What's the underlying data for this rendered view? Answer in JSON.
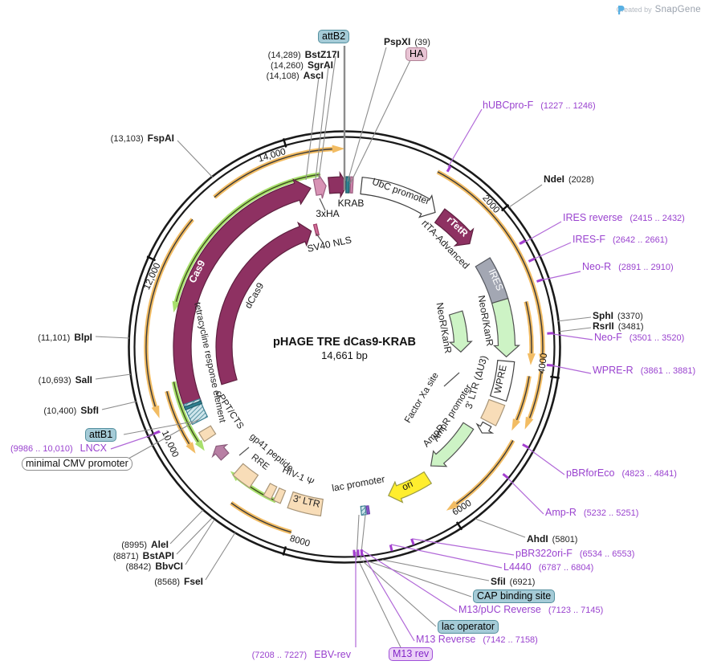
{
  "credit": {
    "created_by": "Created by",
    "brand": "SnapGene"
  },
  "plasmid": {
    "name": "pHAGE TRE dCas9-KRAB",
    "size": "14,661 bp"
  },
  "ticks": [
    "2000",
    "4000",
    "6000",
    "8000",
    "10,000",
    "12,000",
    "14,000"
  ],
  "features": {
    "ubc_promoter": "UbC promoter",
    "rtetr": "rTetR",
    "rtta_advanced": "rtTA-Advanced",
    "ires": "IRES",
    "neor_kanr": "NeoR/KanR",
    "wpre": "WPRE",
    "ltr3_du3": "3' LTR (ΔU3)",
    "factor_xa": "Factor Xa site",
    "ampr_promoter": "AmpR promoter",
    "ampr": "AmpR",
    "ori": "ori",
    "lac_promoter": "lac promoter",
    "ltr3": "3' LTR",
    "hiv1_psi": "HIV-1 Ψ",
    "rre": "RRE",
    "gp41": "gp41 peptide",
    "cppt": "cPPT/CTS",
    "tre": "tetracycline response element",
    "cas9": "Cas9",
    "dcas9": "dCas9",
    "sv40_nls": "SV40 NLS",
    "ha3x": "3xHA",
    "krab": "KRAB"
  },
  "enzymes": {
    "pspxi": {
      "name": "PspXI",
      "pos": "(39)"
    },
    "bstz17i": {
      "name": "BstZ17I",
      "pos": "(14,289)"
    },
    "sgrai": {
      "name": "SgrAI",
      "pos": "(14,260)"
    },
    "asci": {
      "name": "AscI",
      "pos": "(14,108)"
    },
    "fspai": {
      "name": "FspAI",
      "pos": "(13,103)"
    },
    "ndei": {
      "name": "NdeI",
      "pos": "(2028)"
    },
    "sphi": {
      "name": "SphI",
      "pos": "(3370)"
    },
    "rsrii": {
      "name": "RsrII",
      "pos": "(3481)"
    },
    "ahdi": {
      "name": "AhdI",
      "pos": "(5801)"
    },
    "sfii": {
      "name": "SfiI",
      "pos": "(6921)"
    },
    "fsei": {
      "name": "FseI",
      "pos": "(8568)"
    },
    "bbvci": {
      "name": "BbvCI",
      "pos": "(8842)"
    },
    "bstapi": {
      "name": "BstAPI",
      "pos": "(8871)"
    },
    "alei": {
      "name": "AleI",
      "pos": "(8995)"
    },
    "sbfi": {
      "name": "SbfI",
      "pos": "(10,400)"
    },
    "sali": {
      "name": "SalI",
      "pos": "(10,693)"
    },
    "blpi": {
      "name": "BlpI",
      "pos": "(11,101)"
    }
  },
  "primers": {
    "hubcpro_f": {
      "name": "hUBCpro-F",
      "range": "(1227 .. 1246)"
    },
    "ires_reverse": {
      "name": "IRES reverse",
      "range": "(2415 .. 2432)"
    },
    "ires_f": {
      "name": "IRES-F",
      "range": "(2642 .. 2661)"
    },
    "neo_r": {
      "name": "Neo-R",
      "range": "(2891 .. 2910)"
    },
    "neo_f": {
      "name": "Neo-F",
      "range": "(3501 .. 3520)"
    },
    "wpre_r": {
      "name": "WPRE-R",
      "range": "(3861 .. 3881)"
    },
    "pbrforeco": {
      "name": "pBRforEco",
      "range": "(4823 .. 4841)"
    },
    "amp_r": {
      "name": "Amp-R",
      "range": "(5232 .. 5251)"
    },
    "pbr322ori_f": {
      "name": "pBR322ori-F",
      "range": "(6534 .. 6553)"
    },
    "l4440": {
      "name": "L4440",
      "range": "(6787 .. 6804)"
    },
    "m13_puc_reverse": {
      "name": "M13/pUC Reverse",
      "range": "(7123 .. 7145)"
    },
    "m13_reverse": {
      "name": "M13 Reverse",
      "range": "(7142 .. 7158)"
    },
    "ebv_rev": {
      "name": "EBV-rev",
      "range": "(7208 .. 7227)"
    },
    "lncx": {
      "name": "LNCX",
      "range": "(9986 .. 10,010)"
    }
  },
  "badges": {
    "attb2": "attB2",
    "ha": "HA",
    "attb1": "attB1",
    "min_cmv": "minimal CMV promoter",
    "cap": "CAP binding site",
    "lac_operator": "lac operator",
    "m13_rev": "M13 rev"
  },
  "colors": {
    "maroon": "#8e3162",
    "peach": "#f8ddb8",
    "light_green": "#cdf3c5",
    "feature_gray": "#a3a7b3",
    "yellow": "#ffee2e",
    "mauve": "#b87fa4",
    "teal_site": "#2f8292",
    "pink_site": "#cf85ad",
    "orange_orf": "#f2bc63",
    "green_orf": "#a8e06c",
    "purple_primer": "#9a43cf",
    "purple_line": "#b168d8",
    "snapgene_blue": "#58b0e3"
  }
}
